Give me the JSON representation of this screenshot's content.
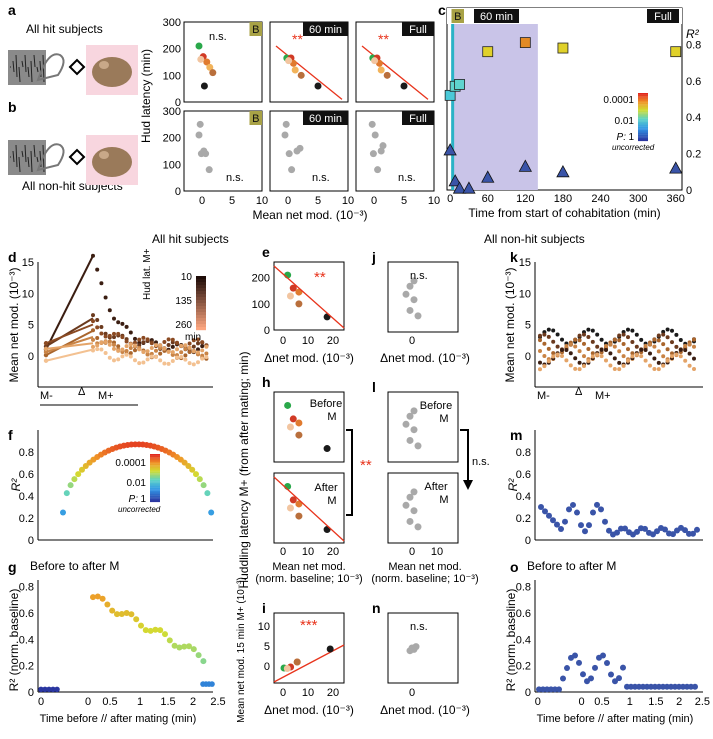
{
  "figure": {
    "headers": {
      "hit": "All hit subjects",
      "nonhit": "All non-hit subjects"
    },
    "panel_letters": {
      "a": "a",
      "b": "b",
      "c": "c",
      "d": "d",
      "e": "e",
      "f": "f",
      "g": "g",
      "h": "h",
      "i": "i",
      "j": "j",
      "k": "k",
      "l": "l",
      "m": "m",
      "n": "n",
      "o": "o"
    },
    "schematic": {
      "a_label": "All hit subjects",
      "b_label": "All non-hit subjects"
    },
    "colors": {
      "red_line": "#e8341c",
      "sig": "#e8341c",
      "gray": "#a9a9a9",
      "olive": "#a8a246",
      "shade": "#c9c4e8",
      "teal": "#2ab3c6",
      "tri": "#3a54a8"
    }
  },
  "chart_data": [
    {
      "id": "a_top",
      "type": "scatter",
      "title_tags": [
        "B",
        "60 min",
        "Full"
      ],
      "ylabel": "Hud latency (min)",
      "xlabel": "Mean net mod. (10⁻³)",
      "xlim": [
        -3,
        10
      ],
      "ylim": [
        0,
        300
      ],
      "xticks": [
        0,
        5,
        10
      ],
      "yticks": [
        0,
        100,
        200,
        300
      ],
      "annotations": [
        "n.s.",
        "**",
        "**"
      ],
      "subplots": [
        {
          "tag": "B",
          "points": [
            {
              "x": -0.5,
              "y": 210,
              "c": "#2aa84a"
            },
            {
              "x": 0.2,
              "y": 170,
              "c": "#d13a25"
            },
            {
              "x": 0.8,
              "y": 150,
              "c": "#e07a2e"
            },
            {
              "x": 1.3,
              "y": 130,
              "c": "#f2b35a"
            },
            {
              "x": 1.8,
              "y": 110,
              "c": "#b96f3c"
            },
            {
              "x": 0.4,
              "y": 60,
              "c": "#1a1a1a"
            },
            {
              "x": -0.2,
              "y": 160,
              "c": "#f2c5a0"
            }
          ],
          "line": false
        },
        {
          "tag": "60 min",
          "points": [
            {
              "x": -0.2,
              "y": 165,
              "c": "#2aa84a"
            },
            {
              "x": 0.5,
              "y": 165,
              "c": "#d13a25"
            },
            {
              "x": 0.9,
              "y": 145,
              "c": "#e07a2e"
            },
            {
              "x": 1.2,
              "y": 120,
              "c": "#f2b35a"
            },
            {
              "x": 2.2,
              "y": 100,
              "c": "#b96f3c"
            },
            {
              "x": 5,
              "y": 60,
              "c": "#1a1a1a"
            },
            {
              "x": 0.1,
              "y": 155,
              "c": "#f2c5a0"
            }
          ],
          "line": [
            -2,
            210,
            9,
            10
          ]
        },
        {
          "tag": "Full",
          "points": [
            {
              "x": -0.2,
              "y": 165,
              "c": "#2aa84a"
            },
            {
              "x": 0.5,
              "y": 165,
              "c": "#d13a25"
            },
            {
              "x": 0.9,
              "y": 145,
              "c": "#e07a2e"
            },
            {
              "x": 1.2,
              "y": 120,
              "c": "#f2b35a"
            },
            {
              "x": 2.2,
              "y": 100,
              "c": "#b96f3c"
            },
            {
              "x": 5,
              "y": 60,
              "c": "#1a1a1a"
            },
            {
              "x": 0.1,
              "y": 155,
              "c": "#f2c5a0"
            }
          ],
          "line": [
            -2,
            210,
            9,
            10
          ]
        }
      ]
    },
    {
      "id": "b_bottom",
      "type": "scatter",
      "title_tags": [
        "B",
        "60 min",
        "Full"
      ],
      "annotations": [
        "n.s.",
        "n.s.",
        "n.s."
      ],
      "subplots": [
        {
          "tag": "B",
          "points": [
            {
              "x": -0.3,
              "y": 250
            },
            {
              "x": -0.5,
              "y": 210
            },
            {
              "x": -0.1,
              "y": 140
            },
            {
              "x": 0.6,
              "y": 140
            },
            {
              "x": 0.3,
              "y": 150
            },
            {
              "x": 1.2,
              "y": 80
            }
          ]
        },
        {
          "tag": "60 min",
          "points": [
            {
              "x": -0.3,
              "y": 250
            },
            {
              "x": -0.5,
              "y": 210
            },
            {
              "x": 0.2,
              "y": 140
            },
            {
              "x": 1.5,
              "y": 150
            },
            {
              "x": 2,
              "y": 160
            },
            {
              "x": 0.6,
              "y": 80
            }
          ]
        },
        {
          "tag": "Full",
          "points": [
            {
              "x": -0.3,
              "y": 250
            },
            {
              "x": 0.2,
              "y": 210
            },
            {
              "x": -0.1,
              "y": 140
            },
            {
              "x": 1.2,
              "y": 150
            },
            {
              "x": 1.5,
              "y": 170
            },
            {
              "x": 0.6,
              "y": 80
            }
          ]
        }
      ]
    },
    {
      "id": "c",
      "type": "scatter",
      "xlabel": "Time from start of cohabitation (min)",
      "ylabel": "R²",
      "xlim": [
        -5,
        370
      ],
      "ylim": [
        0,
        1
      ],
      "xticks": [
        0,
        60,
        120,
        180,
        240,
        300,
        360
      ],
      "yticks": [
        0,
        0.2,
        0.4,
        0.6,
        0.8
      ],
      "tags": [
        "B",
        "60 min",
        "Full"
      ],
      "colorbar_ticks": [
        "0.0001",
        "0.01",
        "1"
      ],
      "colorbar_label": "P:",
      "colorbar_sublabel": "uncorrected",
      "squares": [
        {
          "x": 0,
          "y": 0.52,
          "c": "#4ac9d8"
        },
        {
          "x": 8,
          "y": 0.57,
          "c": "#5fd4cf"
        },
        {
          "x": 15,
          "y": 0.58,
          "c": "#5fd4cf"
        },
        {
          "x": 60,
          "y": 0.76,
          "c": "#e0d12a"
        },
        {
          "x": 120,
          "y": 0.81,
          "c": "#e38a24"
        },
        {
          "x": 180,
          "y": 0.78,
          "c": "#e0d12a"
        },
        {
          "x": 360,
          "y": 0.76,
          "c": "#e0d12a"
        }
      ],
      "triangles": [
        {
          "x": 0,
          "y": 0.22
        },
        {
          "x": 8,
          "y": 0.05
        },
        {
          "x": 15,
          "y": 0.01
        },
        {
          "x": 30,
          "y": 0.01
        },
        {
          "x": 60,
          "y": 0.07
        },
        {
          "x": 120,
          "y": 0.13
        },
        {
          "x": 180,
          "y": 0.1
        },
        {
          "x": 360,
          "y": 0.12
        }
      ]
    },
    {
      "id": "d",
      "type": "line",
      "ylabel": "Mean net mod. (10⁻³)",
      "ylim": [
        -5,
        15
      ],
      "yticks": [
        0,
        5,
        10,
        15
      ],
      "xlabels": [
        "M-",
        "Δ",
        "M+"
      ],
      "colorbar_title": "Hud lat. M+",
      "colorbar_ticks": [
        "10",
        "135",
        "260"
      ],
      "colorbar_unit": "min"
    },
    {
      "id": "e",
      "type": "scatter",
      "xlabel": "Δnet mod. (10⁻³)",
      "ylabel": "",
      "annotation": "**",
      "xticks": [
        0,
        10,
        20
      ],
      "yticks": [
        0,
        100,
        200
      ],
      "points": [
        {
          "x": 0,
          "y": 210,
          "c": "#2aa84a"
        },
        {
          "x": 2,
          "y": 160,
          "c": "#d13a25"
        },
        {
          "x": 4,
          "y": 145,
          "c": "#e07a2e"
        },
        {
          "x": 1,
          "y": 130,
          "c": "#f2c5a0"
        },
        {
          "x": 4,
          "y": 100,
          "c": "#b96f3c"
        },
        {
          "x": 14,
          "y": 50,
          "c": "#1a1a1a"
        }
      ]
    },
    {
      "id": "j",
      "type": "scatter",
      "xlabel": "Δnet mod. (10⁻³)",
      "annotation": "n.s.",
      "xticks": [
        0
      ],
      "points": [
        {
          "x": 1,
          "y": 190
        },
        {
          "x": 0,
          "y": 170
        },
        {
          "x": -1,
          "y": 140
        },
        {
          "x": 1,
          "y": 120
        },
        {
          "x": 0,
          "y": 80
        },
        {
          "x": 2,
          "y": 60
        }
      ]
    },
    {
      "id": "h",
      "type": "scatter",
      "ylabel": "Huddling latency M+ (from after mating; min)",
      "xlabel": "Mean net mod. (norm. baseline; 10⁻³)",
      "labels": [
        "Before M",
        "After M"
      ],
      "annotation": "**",
      "xticks": [
        0,
        10,
        20
      ]
    },
    {
      "id": "l",
      "type": "scatter",
      "xlabel": "Mean net mod. (norm. baseline; 10⁻³)",
      "labels": [
        "Before M",
        "After M"
      ],
      "annotation": "n.s.",
      "xticks": [
        0,
        10
      ]
    },
    {
      "id": "f",
      "type": "scatter",
      "ylabel": "R²",
      "yticks": [
        0,
        0.2,
        0.4,
        0.6,
        0.8
      ],
      "colorbar_ticks": [
        "0.0001",
        "0.01",
        "1"
      ],
      "colorbar_label": "P:",
      "colorbar_sublabel": "uncorrected"
    },
    {
      "id": "g",
      "type": "scatter",
      "title": "Before to after M",
      "ylabel": "R² (norm. baseline)",
      "xlabel": "Time before // after mating (min)",
      "yticks": [
        0,
        0.2,
        0.4,
        0.6,
        0.8
      ],
      "xticks": [
        "0",
        "0",
        "0.5",
        "1",
        "1.5",
        "2",
        "2.5"
      ]
    },
    {
      "id": "i",
      "type": "scatter",
      "ylabel": "Mean net mod. 15 min M+ (10⁻³)",
      "xlabel": "Δnet mod. (10⁻³)",
      "annotation": "***",
      "xticks": [
        0,
        10,
        20
      ],
      "yticks": [
        0,
        5,
        10
      ]
    },
    {
      "id": "n",
      "type": "scatter",
      "xlabel": "Δnet mod. (10⁻³)",
      "annotation": "n.s.",
      "xticks": [
        0
      ]
    },
    {
      "id": "k",
      "type": "line",
      "ylabel": "Mean net mod. (10⁻³)",
      "ylim": [
        -5,
        15
      ],
      "yticks": [
        0,
        5,
        10,
        15
      ],
      "xlabels": [
        "M-",
        "Δ",
        "M+"
      ]
    },
    {
      "id": "m",
      "type": "scatter",
      "ylabel": "R²",
      "yticks": [
        0,
        0.2,
        0.4,
        0.6,
        0.8
      ]
    },
    {
      "id": "o",
      "type": "scatter",
      "title": "Before to after M",
      "ylabel": "R² (norm. baseline)",
      "xlabel": "Time before // after mating (min)",
      "yticks": [
        0,
        0.2,
        0.4,
        0.6,
        0.8
      ],
      "xticks": [
        "0",
        "0",
        "0.5",
        "1",
        "1.5",
        "2",
        "2.5"
      ]
    }
  ]
}
